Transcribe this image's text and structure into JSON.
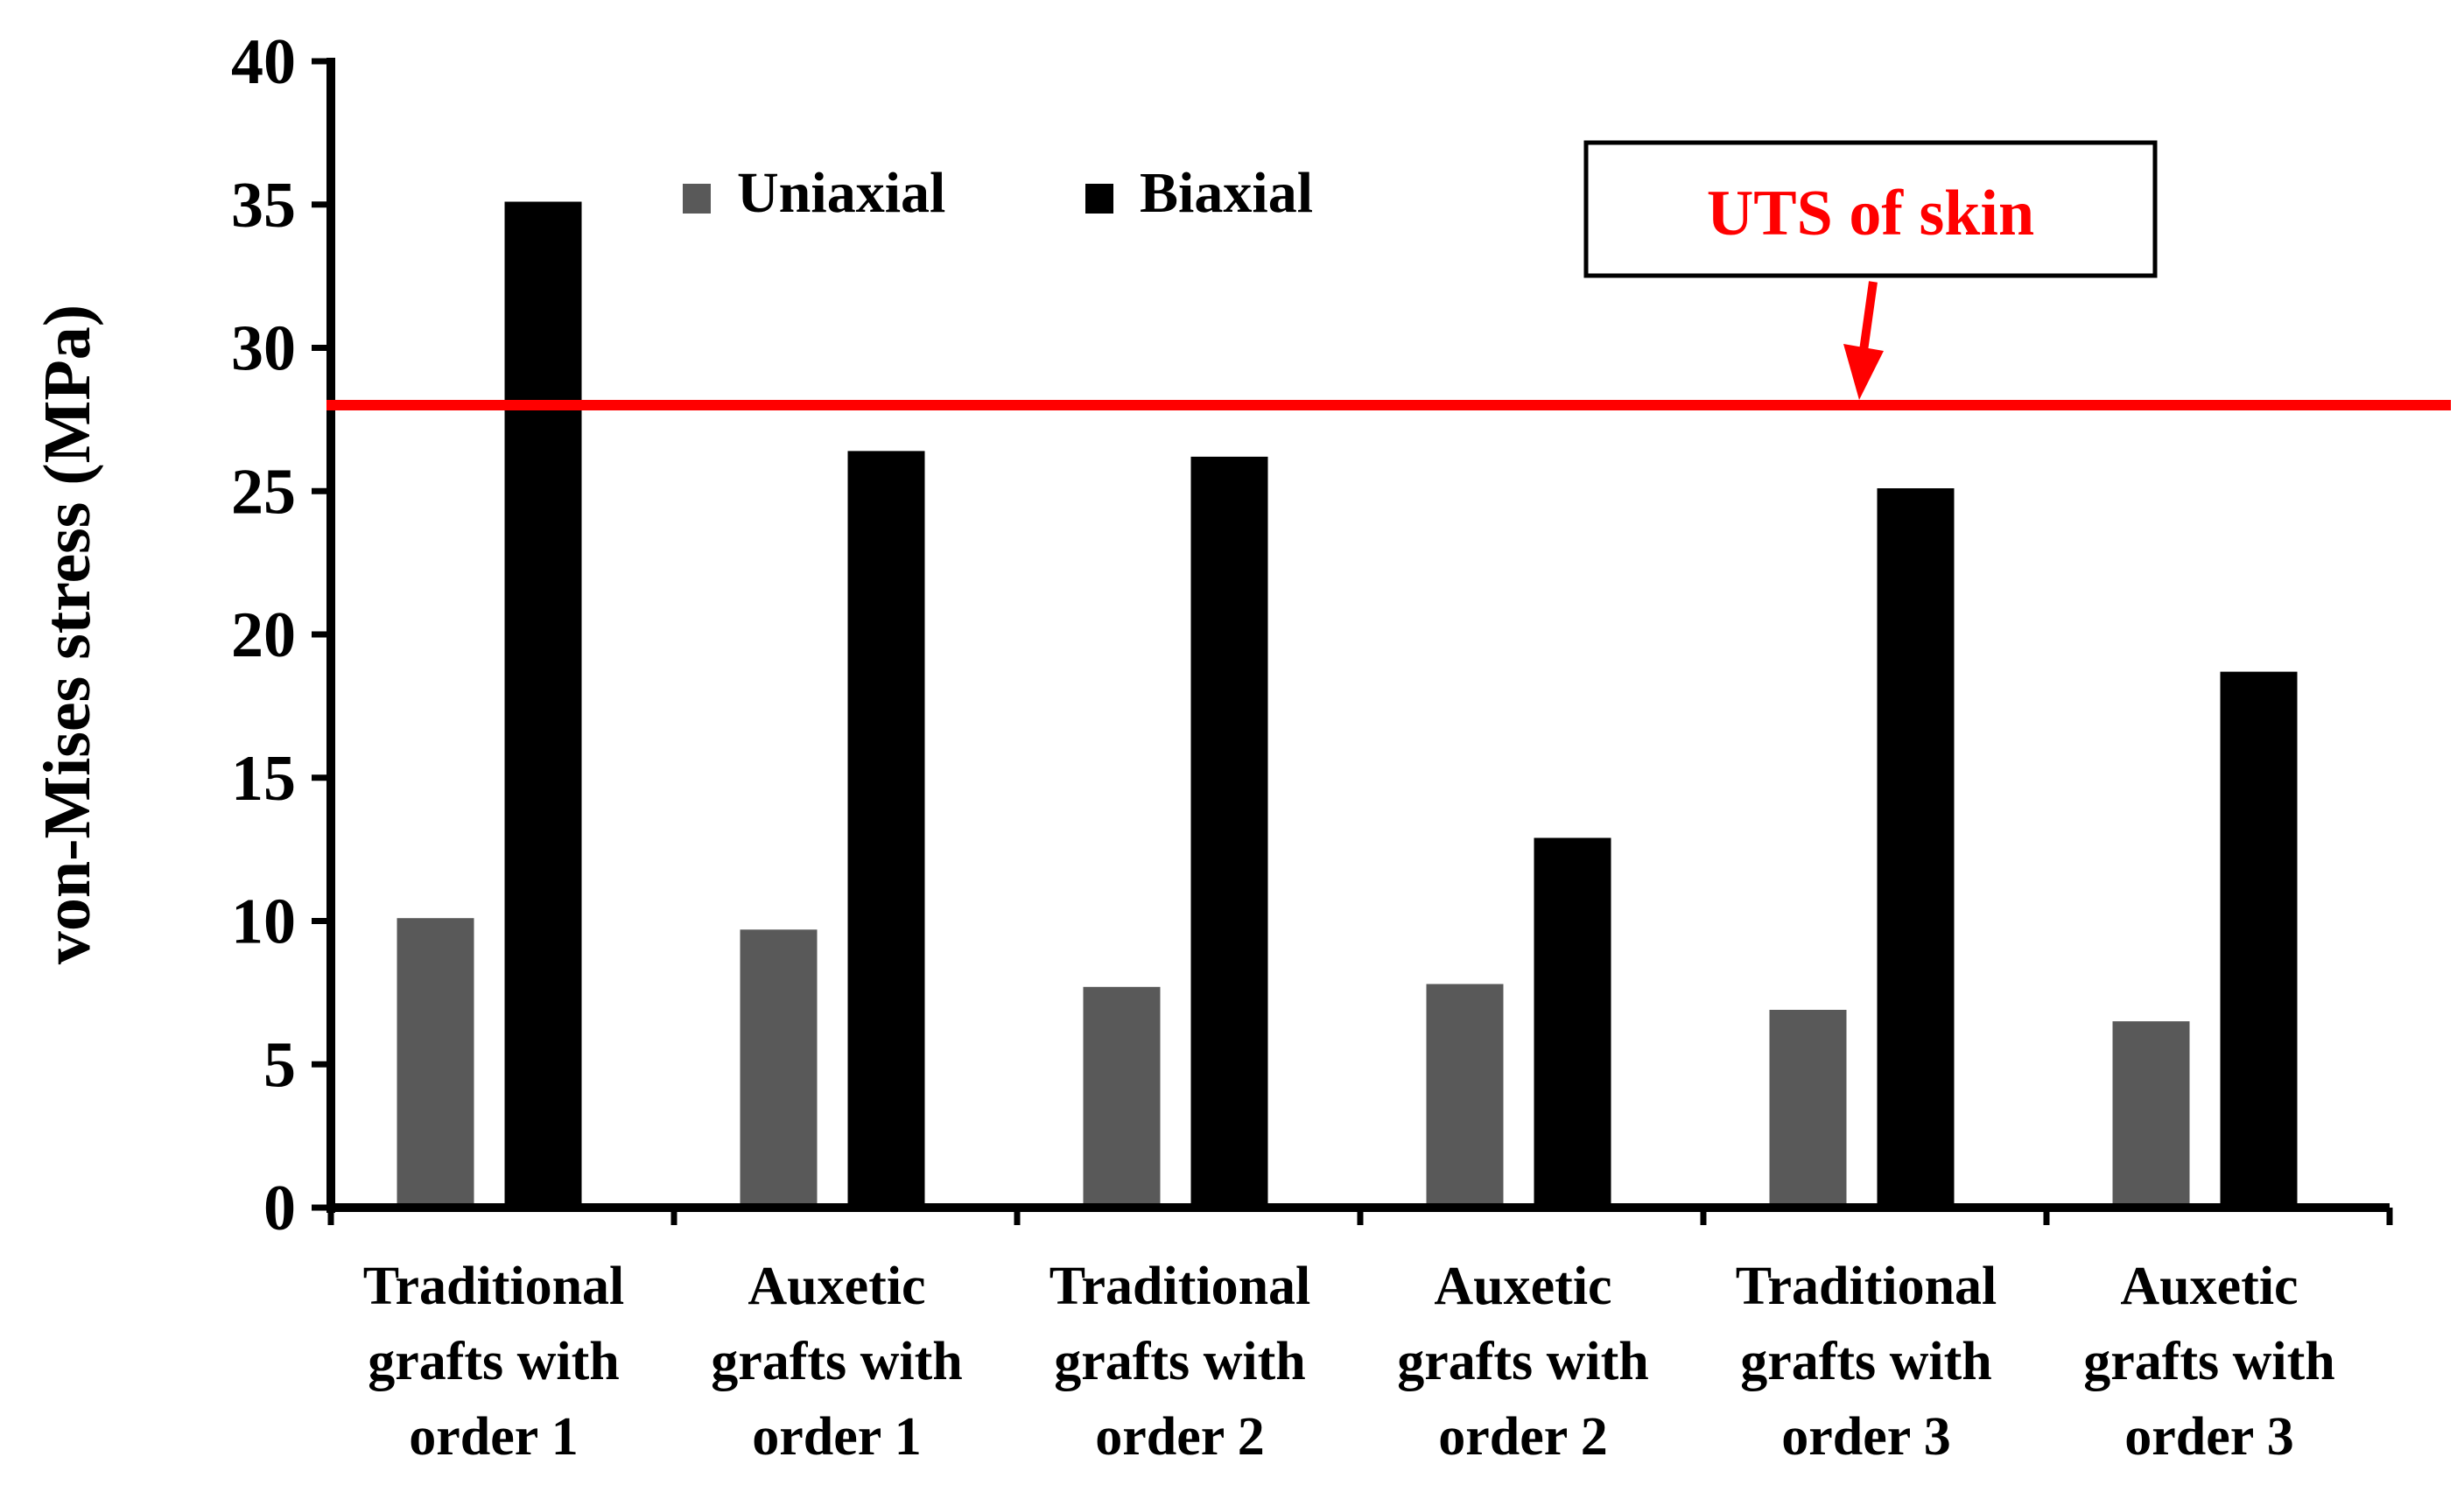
{
  "chart_data": {
    "type": "bar",
    "title": "",
    "xlabel": "",
    "ylabel": "von-Mises stress (MPa)",
    "ylim": [
      0,
      40
    ],
    "yticks": [
      0,
      5,
      10,
      15,
      20,
      25,
      30,
      35,
      40
    ],
    "grid": false,
    "legend_position": "top-left",
    "categories": [
      [
        "Traditional",
        "grafts with",
        "order 1"
      ],
      [
        "Auxetic",
        "grafts with",
        "order 1"
      ],
      [
        "Traditional",
        "grafts with",
        "order 2"
      ],
      [
        "Auxetic",
        "grafts with",
        "order 2"
      ],
      [
        "Traditional",
        "grafts with",
        "order 3"
      ],
      [
        "Auxetic",
        "grafts with",
        "order 3"
      ]
    ],
    "series": [
      {
        "name": "Uniaxial",
        "color": "#595959",
        "values": [
          10.1,
          9.7,
          7.7,
          7.8,
          6.9,
          6.5
        ]
      },
      {
        "name": "Biaxial",
        "color": "#000000",
        "values": [
          35.1,
          26.4,
          26.2,
          12.9,
          25.1,
          18.7
        ]
      }
    ],
    "reference_line": {
      "label": "UTS of skin",
      "value": 28,
      "color": "#ff0000"
    }
  }
}
